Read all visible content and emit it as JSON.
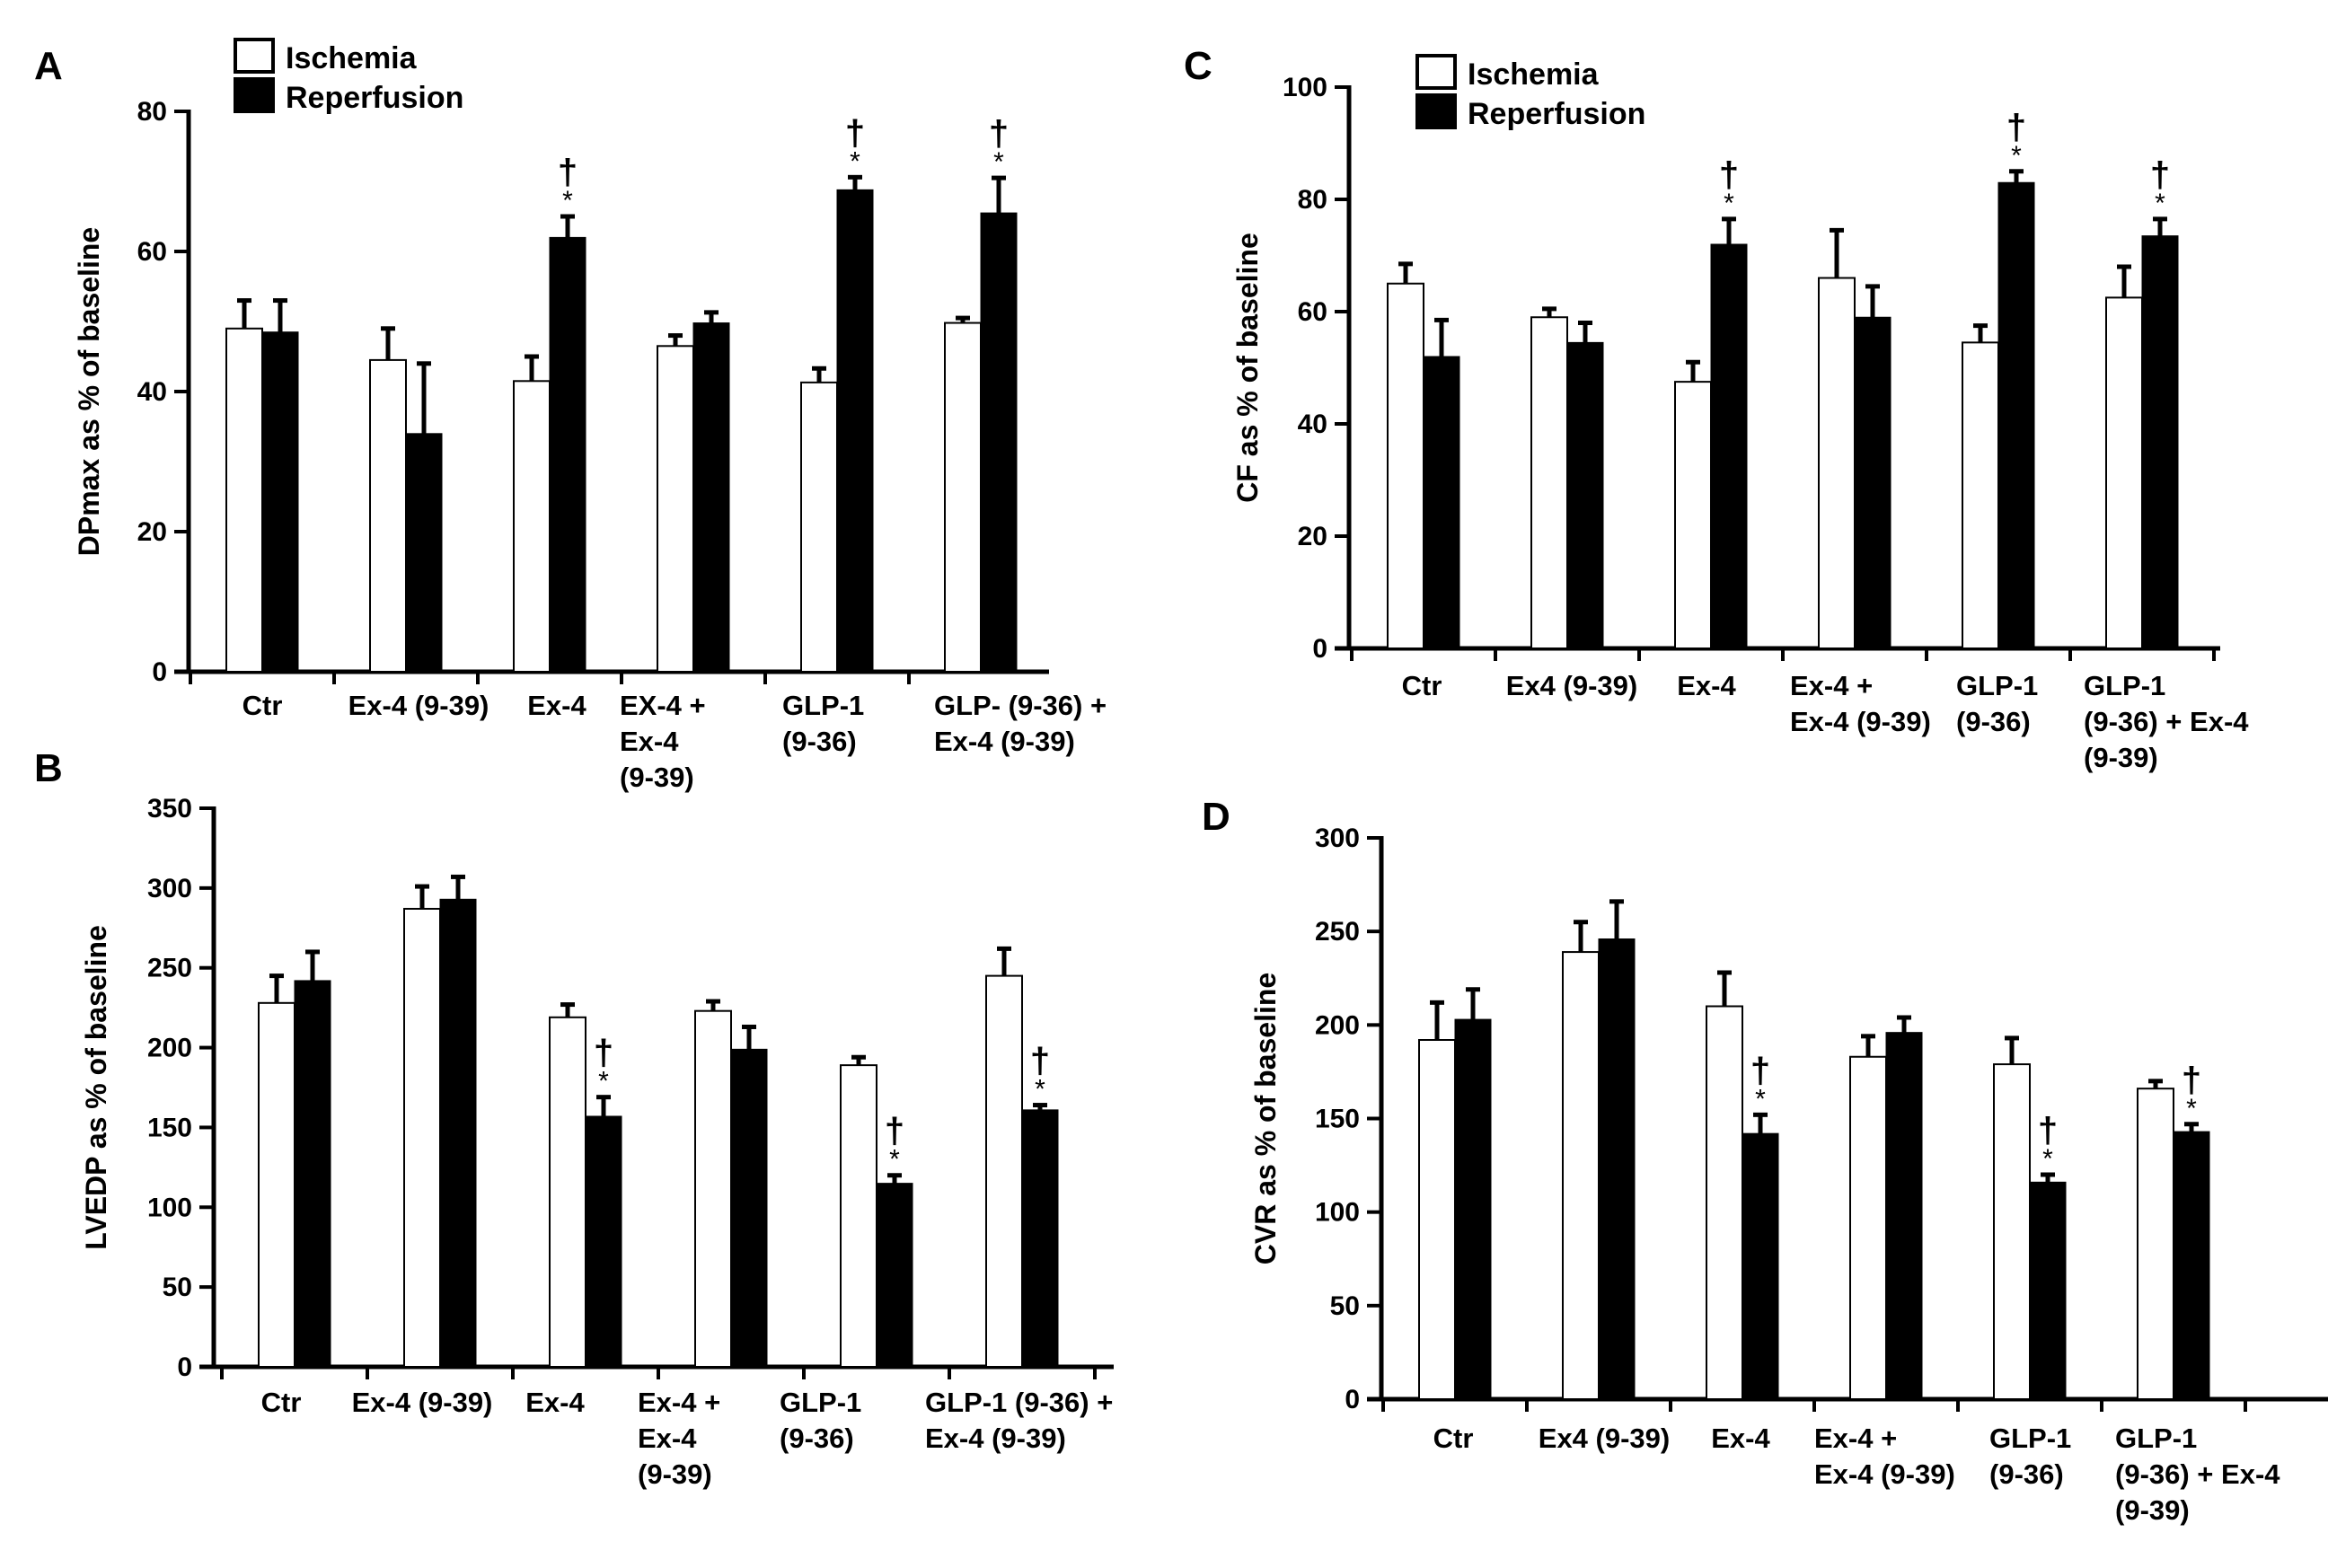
{
  "chart_data": [
    {
      "panel": "A",
      "type": "bar",
      "ylabel": "DPmax as % of baseline",
      "ylim": [
        0,
        80
      ],
      "yticks": [
        0,
        20,
        40,
        60,
        80
      ],
      "categories": [
        [
          "Ctr"
        ],
        [
          "Ex-4 (9-39)"
        ],
        [
          "Ex-4"
        ],
        [
          "EX-4 +",
          "Ex-4",
          "(9-39)"
        ],
        [
          "GLP-1",
          "(9-36)"
        ],
        [
          "GLP- (9-36) +",
          "Ex-4 (9-39)"
        ]
      ],
      "series": [
        {
          "name": "Ischemia",
          "color": "#ffffff",
          "values": [
            49,
            44.5,
            41.5,
            46.5,
            41.3,
            49.8
          ],
          "errors": [
            4,
            4.5,
            3.5,
            1.5,
            2,
            0.7
          ]
        },
        {
          "name": "Reperfusion",
          "color": "#000000",
          "values": [
            48.5,
            34,
            62,
            49.8,
            68.8,
            65.5
          ],
          "errors": [
            4.5,
            10,
            3,
            1.5,
            1.8,
            5
          ]
        }
      ],
      "annotations": [
        {
          "category": 2,
          "series": 1,
          "marks": [
            "*",
            "†"
          ]
        },
        {
          "category": 4,
          "series": 1,
          "marks": [
            "*",
            "†"
          ]
        },
        {
          "category": 5,
          "series": 1,
          "marks": [
            "*",
            "†"
          ]
        }
      ],
      "legend": [
        "Ischemia",
        "Reperfusion"
      ],
      "legend_position": "top-left"
    },
    {
      "panel": "B",
      "type": "bar",
      "ylabel": "LVEDP as % of baseline",
      "ylim": [
        0,
        350
      ],
      "yticks": [
        0,
        50,
        100,
        150,
        200,
        250,
        300,
        350
      ],
      "categories": [
        [
          "Ctr"
        ],
        [
          "Ex-4 (9-39)"
        ],
        [
          "Ex-4"
        ],
        [
          "Ex-4 +",
          "Ex-4",
          "(9-39)"
        ],
        [
          "GLP-1",
          "(9-36)"
        ],
        [
          "GLP-1 (9-36) +",
          "Ex-4 (9-39)"
        ]
      ],
      "series": [
        {
          "name": "Ischemia",
          "color": "#ffffff",
          "values": [
            228,
            287,
            219,
            223,
            189,
            245
          ],
          "errors": [
            17,
            14,
            8,
            6,
            5,
            17
          ]
        },
        {
          "name": "Reperfusion",
          "color": "#000000",
          "values": [
            242,
            293,
            157,
            199,
            115,
            161
          ],
          "errors": [
            18,
            14,
            12,
            14,
            5,
            3
          ]
        }
      ],
      "annotations": [
        {
          "category": 2,
          "series": 1,
          "marks": [
            "*",
            "†"
          ]
        },
        {
          "category": 4,
          "series": 1,
          "marks": [
            "*",
            "†"
          ]
        },
        {
          "category": 5,
          "series": 1,
          "marks": [
            "*",
            "†"
          ]
        }
      ]
    },
    {
      "panel": "C",
      "type": "bar",
      "ylabel": "CF as % of baseline",
      "ylim": [
        0,
        100
      ],
      "yticks": [
        0,
        20,
        40,
        60,
        80,
        100
      ],
      "categories": [
        [
          "Ctr"
        ],
        [
          "Ex4 (9-39)"
        ],
        [
          "Ex-4"
        ],
        [
          "Ex-4 +",
          "Ex-4 (9-39)"
        ],
        [
          "GLP-1",
          "(9-36)"
        ],
        [
          "GLP-1",
          "(9-36) + Ex-4",
          "(9-39)"
        ]
      ],
      "series": [
        {
          "name": "Ischemia",
          "color": "#ffffff",
          "values": [
            65,
            59,
            47.5,
            66,
            54.5,
            62.5
          ],
          "errors": [
            3.5,
            1.5,
            3.5,
            8.5,
            3,
            5.5
          ]
        },
        {
          "name": "Reperfusion",
          "color": "#000000",
          "values": [
            52,
            54.5,
            72,
            59,
            83,
            73.5
          ],
          "errors": [
            6.5,
            3.5,
            4.5,
            5.5,
            2,
            3
          ]
        }
      ],
      "annotations": [
        {
          "category": 2,
          "series": 1,
          "marks": [
            "*",
            "†"
          ]
        },
        {
          "category": 4,
          "series": 1,
          "marks": [
            "*",
            "†"
          ]
        },
        {
          "category": 5,
          "series": 1,
          "marks": [
            "*",
            "†"
          ]
        }
      ],
      "legend": [
        "Ischemia",
        "Reperfusion"
      ],
      "legend_position": "top-left"
    },
    {
      "panel": "D",
      "type": "bar",
      "ylabel": "CVR as % of baseline",
      "ylim": [
        0,
        300
      ],
      "yticks": [
        0,
        50,
        100,
        150,
        200,
        250,
        300
      ],
      "categories": [
        [
          "Ctr"
        ],
        [
          "Ex4 (9-39)"
        ],
        [
          "Ex-4"
        ],
        [
          "Ex-4 +",
          "Ex-4 (9-39)"
        ],
        [
          "GLP-1",
          "(9-36)"
        ],
        [
          "GLP-1",
          "(9-36) + Ex-4",
          "(9-39)"
        ]
      ],
      "series": [
        {
          "name": "Ischemia",
          "color": "#ffffff",
          "values": [
            192,
            239,
            210,
            183,
            179,
            166
          ],
          "errors": [
            20,
            16,
            18,
            11,
            14,
            4
          ]
        },
        {
          "name": "Reperfusion",
          "color": "#000000",
          "values": [
            203,
            246,
            142,
            196,
            116,
            143
          ],
          "errors": [
            16,
            20,
            10,
            8,
            4,
            4
          ]
        }
      ],
      "annotations": [
        {
          "category": 2,
          "series": 1,
          "marks": [
            "*",
            "†"
          ]
        },
        {
          "category": 4,
          "series": 1,
          "marks": [
            "*",
            "†"
          ]
        },
        {
          "category": 5,
          "series": 1,
          "marks": [
            "*",
            "†"
          ]
        }
      ]
    }
  ]
}
